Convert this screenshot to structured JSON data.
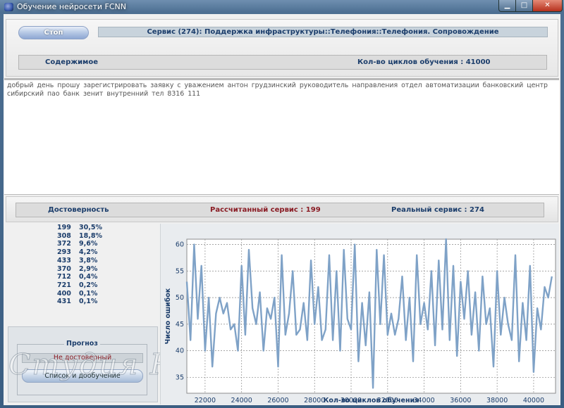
{
  "window": {
    "title": "Обучение нейросети FCNN",
    "minimize_label": "▁",
    "maximize_label": "□",
    "close_label": "✕"
  },
  "top": {
    "stop_label": "Стоп",
    "service": "Сервис (274): Поддержка инфраструктуры::Телефония::Телефония. Сопровождение",
    "content_label": "Содержимое",
    "cycles_label": "Кол-во циклов обучения : 41000"
  },
  "text_content": "добрый день    прошу зарегистрировать заявку    с уважением   антон грудзинский  руководитель направления  отдел автоматизации  банковский центр сибирский  пао банк зенит  внутренний тел    8316  111",
  "mid": {
    "reliability_label": "Достоверность",
    "calculated_label": "Рассчитанный сервис : 199",
    "real_label": "Реальный сервис : 274"
  },
  "ranking": [
    {
      "id": "199",
      "pct": "30,5%"
    },
    {
      "id": "308",
      "pct": "18,8%"
    },
    {
      "id": "372",
      "pct": "9,6%"
    },
    {
      "id": "293",
      "pct": "4,2%"
    },
    {
      "id": "433",
      "pct": "3,8%"
    },
    {
      "id": "370",
      "pct": "2,9%"
    },
    {
      "id": "712",
      "pct": "0,4%"
    },
    {
      "id": "721",
      "pct": "0,2%"
    },
    {
      "id": "400",
      "pct": "0,1%"
    },
    {
      "id": "431",
      "pct": "0,1%"
    }
  ],
  "forecast": {
    "title": "Прогноз",
    "status": "Не достоверный",
    "button_label": "Список и дообучение"
  },
  "watermark": "Студия ЮГ",
  "colors": {
    "accent": "#1b3d6b",
    "warning": "#8a1c24",
    "series": "#7fa2c7"
  },
  "chart_data": {
    "type": "line",
    "xlabel": "Кол-во циклов обучения",
    "ylabel": "Число ошибок",
    "xlim": [
      21000,
      41200
    ],
    "ylim": [
      32,
      61
    ],
    "xticks": [
      22000,
      24000,
      26000,
      28000,
      30000,
      32000,
      34000,
      36000,
      38000,
      40000
    ],
    "yticks": [
      35,
      40,
      45,
      50,
      55,
      60
    ],
    "grid": true,
    "series": [
      {
        "x": [
          21000,
          21200,
          21400,
          21600,
          21800,
          22000,
          22200,
          22400,
          22600,
          22800,
          23000,
          23200,
          23400,
          23600,
          23800,
          24000,
          24200,
          24400,
          24600,
          24800,
          25000,
          25200,
          25400,
          25600,
          25800,
          26000,
          26200,
          26400,
          26600,
          26800,
          27000,
          27200,
          27400,
          27600,
          27800,
          28000,
          28200,
          28400,
          28600,
          28800,
          29000,
          29200,
          29400,
          29600,
          29800,
          30000,
          30200,
          30400,
          30600,
          30800,
          31000,
          31200,
          31400,
          31600,
          31800,
          32000,
          32200,
          32400,
          32600,
          32800,
          33000,
          33200,
          33400,
          33600,
          33800,
          34000,
          34200,
          34400,
          34600,
          34800,
          35000,
          35200,
          35400,
          35600,
          35800,
          36000,
          36200,
          36400,
          36600,
          36800,
          37000,
          37200,
          37400,
          37600,
          37800,
          38000,
          38200,
          38400,
          38600,
          38800,
          39000,
          39200,
          39400,
          39600,
          39800,
          40000,
          40200,
          40400,
          40600,
          40800,
          41000
        ],
        "y": [
          53,
          42,
          60,
          46,
          56,
          40,
          50,
          37,
          47,
          50,
          47,
          49,
          44,
          45,
          40,
          56,
          43,
          59,
          48,
          45,
          51,
          40,
          48,
          46,
          50,
          37,
          58,
          43,
          47,
          55,
          43,
          44,
          49,
          42,
          57,
          45,
          52,
          42,
          44,
          58,
          42,
          55,
          40,
          59,
          46,
          44,
          60,
          38,
          49,
          41,
          51,
          33,
          59,
          45,
          58,
          43,
          47,
          43,
          46,
          54,
          42,
          50,
          38,
          58,
          45,
          49,
          44,
          55,
          41,
          57,
          44,
          61,
          42,
          56,
          39,
          53,
          46,
          55,
          43,
          51,
          40,
          54,
          45,
          48,
          37,
          55,
          43,
          50,
          45,
          42,
          58,
          38,
          49,
          42,
          56,
          36,
          48,
          44,
          52,
          50,
          54
        ]
      }
    ]
  }
}
